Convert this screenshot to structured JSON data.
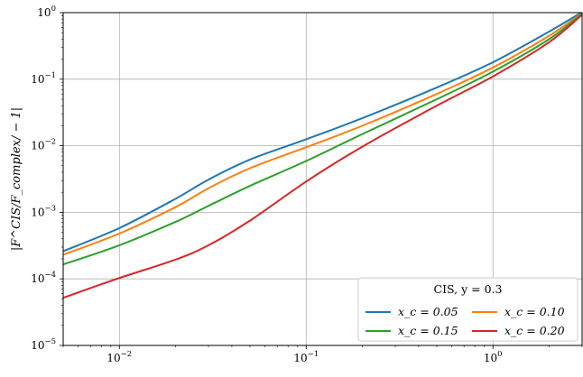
{
  "chart_data": {
    "type": "line",
    "xscale": "log",
    "yscale": "log",
    "xlim": [
      0.005,
      3.0
    ],
    "ylim": [
      1e-05,
      1.0
    ],
    "xlabel": "",
    "ylabel": "|F^CIS/F_complex/ − 1|",
    "grid": true,
    "x_ticks": [
      {
        "value": 0.01,
        "base": "10",
        "exp": "−2"
      },
      {
        "value": 0.1,
        "base": "10",
        "exp": "−1"
      },
      {
        "value": 1,
        "base": "10",
        "exp": "0"
      }
    ],
    "y_ticks": [
      {
        "value": 1e-05,
        "base": "10",
        "exp": "−5"
      },
      {
        "value": 0.0001,
        "base": "10",
        "exp": "−4"
      },
      {
        "value": 0.001,
        "base": "10",
        "exp": "−3"
      },
      {
        "value": 0.01,
        "base": "10",
        "exp": "−2"
      },
      {
        "value": 0.1,
        "base": "10",
        "exp": "−1"
      },
      {
        "value": 1,
        "base": "10",
        "exp": "0"
      }
    ],
    "legend": {
      "title": "CIS, y = 0.3",
      "placement": "lower-right",
      "columns": 2
    },
    "x": [
      0.005,
      0.01,
      0.02,
      0.03,
      0.05,
      0.1,
      0.2,
      0.5,
      1,
      2,
      3
    ],
    "series": [
      {
        "name": "x_c = 0.05",
        "color": "#1f77b4",
        "values": [
          0.00026,
          0.00058,
          0.0016,
          0.0031,
          0.0062,
          0.0125,
          0.026,
          0.075,
          0.18,
          0.52,
          1.02
        ]
      },
      {
        "name": "x_c = 0.10",
        "color": "#ff7f0e",
        "values": [
          0.00023,
          0.00048,
          0.0012,
          0.0023,
          0.0046,
          0.0095,
          0.02,
          0.06,
          0.15,
          0.45,
          0.98
        ]
      },
      {
        "name": "x_c = 0.15",
        "color": "#2ca02c",
        "values": [
          0.000165,
          0.00032,
          0.00072,
          0.00125,
          0.0025,
          0.0059,
          0.015,
          0.05,
          0.13,
          0.4,
          0.96
        ]
      },
      {
        "name": "x_c = 0.20",
        "color": "#d62728",
        "values": [
          5.2e-05,
          0.000103,
          0.000195,
          0.00032,
          0.00075,
          0.0029,
          0.0097,
          0.04,
          0.11,
          0.36,
          0.93
        ]
      }
    ]
  }
}
